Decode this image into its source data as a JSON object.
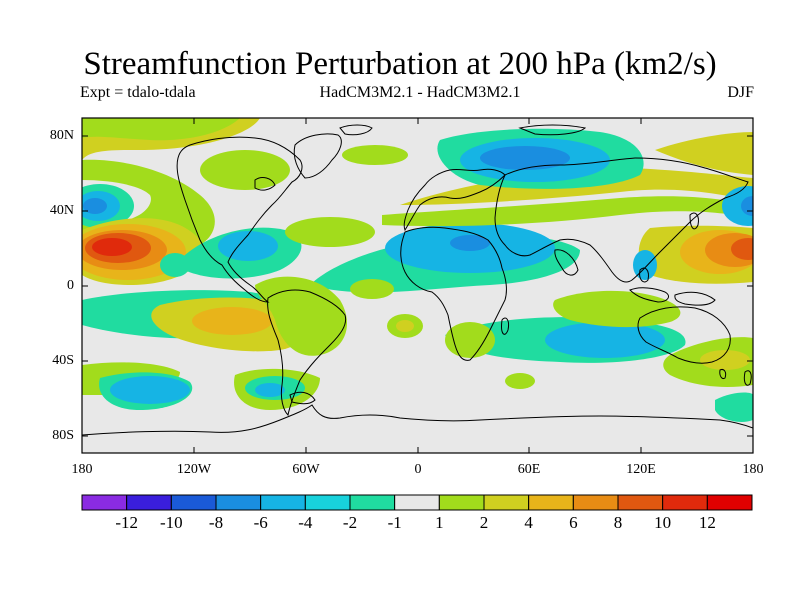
{
  "title": "Streamfunction Perturbation at 200 hPa (km2/s)",
  "subtitle_left": "Expt = tdalo-tdala",
  "subtitle_center": "HadCM3M2.1 - HadCM3M2.1",
  "subtitle_right": "DJF",
  "lat_labels": [
    "80N",
    "40N",
    "0",
    "40S",
    "80S"
  ],
  "lon_labels": [
    "180",
    "120W",
    "60W",
    "0",
    "60E",
    "120E",
    "180"
  ],
  "colorbar": {
    "labels": [
      "-12",
      "-10",
      "-8",
      "-6",
      "-4",
      "-2",
      "-1",
      "1",
      "2",
      "4",
      "6",
      "8",
      "10",
      "12"
    ],
    "colors": [
      "#8a2be2",
      "#3a1edc",
      "#1a5ad8",
      "#1a8ee0",
      "#16b4e4",
      "#18d2dc",
      "#20dca0",
      "#e8e8e8",
      "#a2dc1c",
      "#d0d020",
      "#e8b41a",
      "#e88c14",
      "#e05810",
      "#e02a0c",
      "#e00000"
    ]
  }
}
